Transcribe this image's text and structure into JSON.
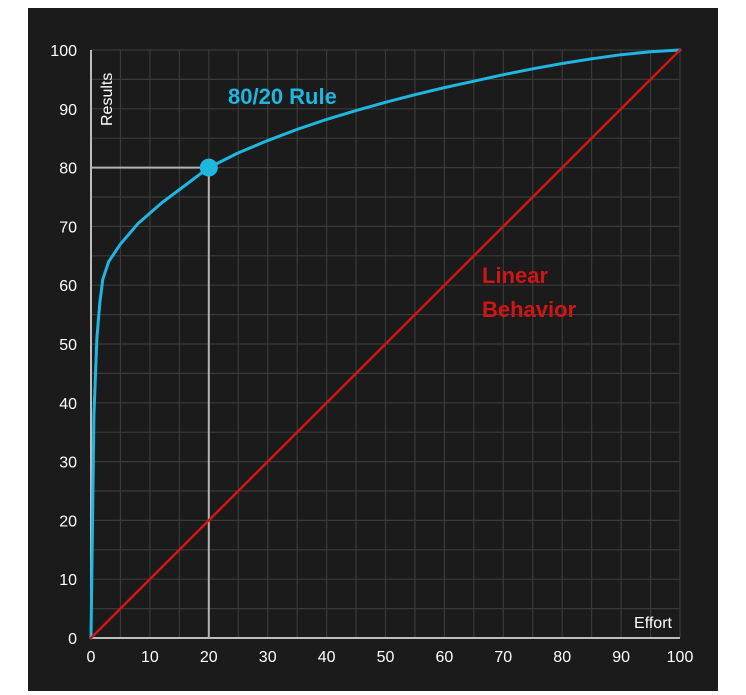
{
  "chart_data": {
    "type": "line",
    "title": "",
    "xlabel": "Effort",
    "ylabel": "Results",
    "xlim": [
      0,
      100
    ],
    "ylim": [
      0,
      100
    ],
    "x_ticks": [
      "0",
      "10",
      "20",
      "30",
      "40",
      "50",
      "60",
      "70",
      "80",
      "90",
      "100"
    ],
    "y_ticks": [
      "0",
      "10",
      "20",
      "30",
      "40",
      "50",
      "60",
      "70",
      "80",
      "90",
      "100"
    ],
    "grid": true,
    "legend": "none",
    "series": [
      {
        "name": "80/20 Rule",
        "color": "#1fb6e0",
        "x": [
          0,
          0.5,
          1,
          1.5,
          2,
          3,
          5,
          8,
          12,
          16,
          20,
          25,
          30,
          35,
          40,
          45,
          50,
          55,
          60,
          65,
          70,
          75,
          80,
          85,
          90,
          95,
          100
        ],
        "y": [
          0,
          38,
          51,
          57,
          61,
          64,
          67,
          70.5,
          74,
          77,
          80,
          82.5,
          84.6,
          86.5,
          88.2,
          89.7,
          91.1,
          92.4,
          93.6,
          94.7,
          95.8,
          96.8,
          97.7,
          98.5,
          99.2,
          99.7,
          100
        ]
      },
      {
        "name": "Linear Behavior",
        "color": "#d01515",
        "x": [
          0,
          100
        ],
        "y": [
          0,
          100
        ]
      }
    ],
    "annotations": [
      {
        "type": "point",
        "x": 20,
        "y": 80,
        "color": "#1fb6e0",
        "reference_lines": true,
        "reference_color": "#b4b4b4"
      }
    ],
    "colors": {
      "background": "#1b1b1b",
      "grid": "#3a3a3a",
      "axis": "#bdbdbd",
      "text": "#ffffff"
    }
  },
  "labels": {
    "curve_label": "80/20 Rule",
    "linear_label_line1": "Linear",
    "linear_label_line2": "Behavior",
    "x_axis_label": "Effort",
    "y_axis_label": "Results"
  }
}
